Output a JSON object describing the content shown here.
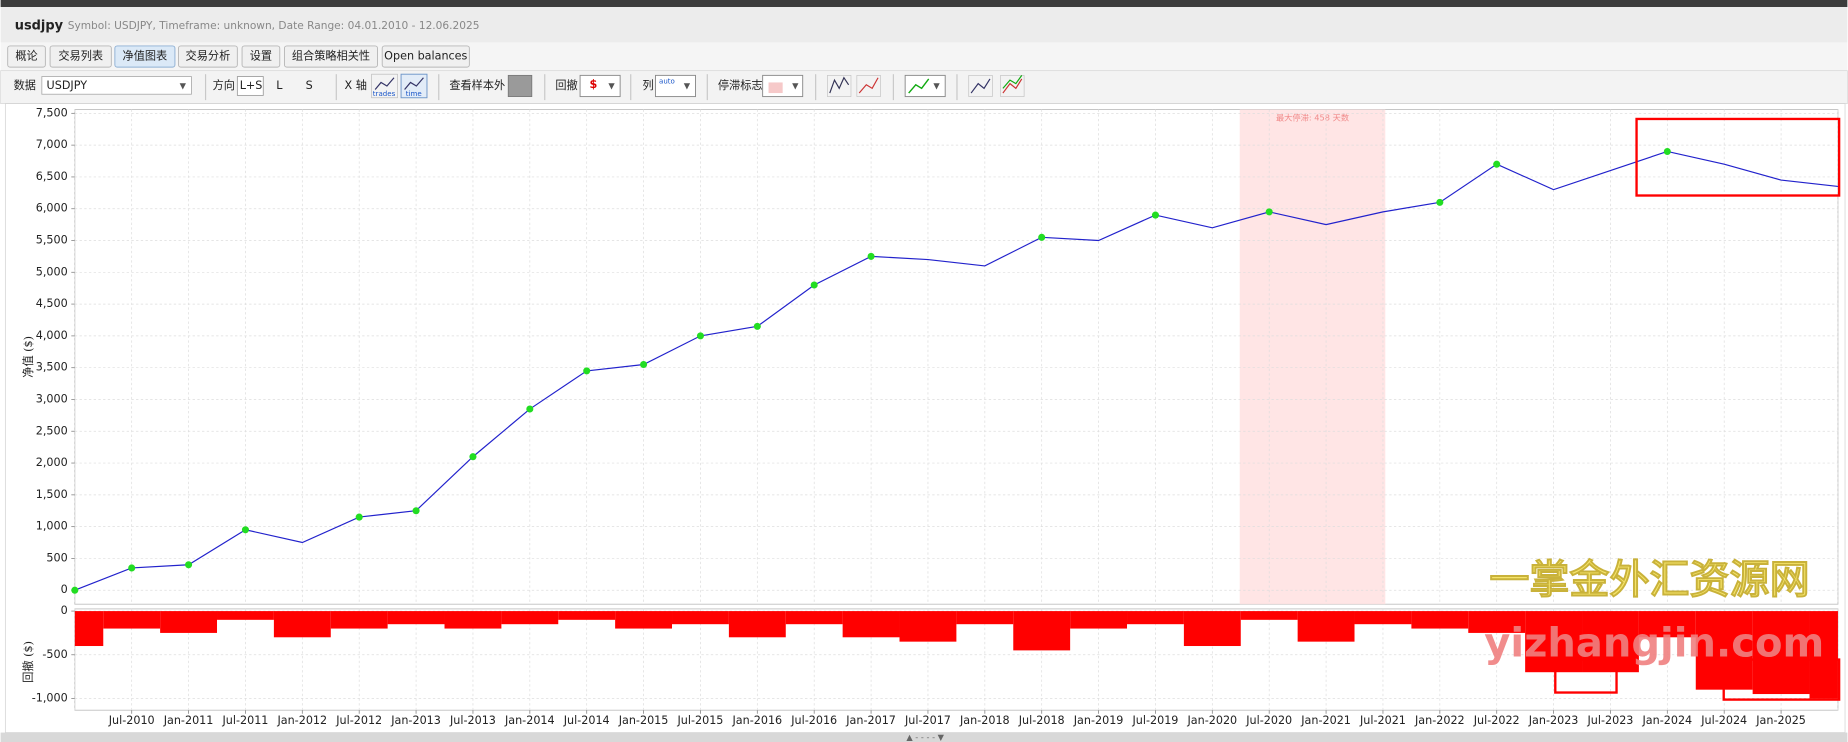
{
  "header": {
    "title": "usdjpy",
    "subtitle": "Symbol: USDJPY, Timeframe: unknown, Date Range: 04.01.2010 - 12.06.2025"
  },
  "tabs": [
    {
      "label": "概论",
      "active": false
    },
    {
      "label": "交易列表",
      "active": false
    },
    {
      "label": "净值图表",
      "active": true
    },
    {
      "label": "交易分析",
      "active": false
    },
    {
      "label": "设置",
      "active": false
    },
    {
      "label": "组合策略相关性",
      "active": false
    },
    {
      "label": "Open balances",
      "active": false
    }
  ],
  "toolbar": {
    "data_label": "数据",
    "symbol": "USDJPY",
    "direction_label": "方向",
    "directions": [
      "L+S",
      "L",
      "S"
    ],
    "x_axis_label": "X 轴",
    "x_axis_options": [
      "trades",
      "time"
    ],
    "out_of_sample_label": "查看样本外",
    "drawdown_label": "回撤",
    "columns_label": "列",
    "columns_option": "auto",
    "stagnation_label": "停滞标志"
  },
  "chart_data": [
    {
      "type": "line",
      "y_label": "净值 ($)",
      "annotation": "最大停滞: 458 天数",
      "color": "#2222cc",
      "new_high_color": "#22dd22",
      "values": [
        0,
        350,
        400,
        950,
        750,
        1150,
        1250,
        2100,
        2850,
        3450,
        3550,
        4000,
        4150,
        4800,
        5250,
        5200,
        5100,
        5550,
        5500,
        5900,
        5700,
        5950,
        5750,
        5950,
        6100,
        6700,
        6300,
        6600,
        6900,
        6700,
        6450,
        6350
      ],
      "ylim": [
        -220,
        7560
      ],
      "yticks": [
        {
          "value": 7500,
          "label": "7,500"
        },
        {
          "value": 7000,
          "label": "7,000"
        },
        {
          "value": 6500,
          "label": "6,500"
        },
        {
          "value": 6000,
          "label": "6,000"
        },
        {
          "value": 5500,
          "label": "5,500"
        },
        {
          "value": 5000,
          "label": "5,000"
        },
        {
          "value": 4500,
          "label": "4,500"
        },
        {
          "value": 4000,
          "label": "4,000"
        },
        {
          "value": 3500,
          "label": "3,500"
        },
        {
          "value": 3000,
          "label": "3,000"
        },
        {
          "value": 2500,
          "label": "2,500"
        },
        {
          "value": 2000,
          "label": "2,000"
        },
        {
          "value": 1500,
          "label": "1,500"
        },
        {
          "value": 1000,
          "label": "1,000"
        },
        500,
        0
      ],
      "grid": true
    },
    {
      "type": "bar",
      "y_label": "回撤 ($)",
      "color": "#ff0000",
      "categories": [
        null,
        "Jul-2010",
        "Jan-2011",
        "Jul-2011",
        "Jan-2012",
        "Jul-2012",
        "Jan-2013",
        "Jul-2013",
        "Jan-2014",
        "Jul-2014",
        "Jan-2015",
        "Jul-2015",
        "Jan-2016",
        "Jul-2016",
        "Jan-2017",
        "Jul-2017",
        "Jan-2018",
        "Jul-2018",
        "Jan-2019",
        "Jul-2019",
        "Jan-2020",
        "Jul-2020",
        "Jan-2021",
        "Jul-2021",
        "Jan-2022",
        "Jul-2022",
        "Jan-2023",
        "Jul-2023",
        "Jan-2024",
        "Jul-2024",
        "Jan-2025",
        null
      ],
      "values": [
        -400,
        -200,
        -250,
        -100,
        -300,
        -200,
        -150,
        -200,
        -150,
        -100,
        -200,
        -150,
        -300,
        -150,
        -300,
        -350,
        -150,
        -450,
        -200,
        -150,
        -400,
        -100,
        -350,
        -150,
        -200,
        -250,
        -700,
        -700,
        -300,
        -900,
        -950,
        -1000
      ],
      "ylim": [
        -1135,
        25
      ],
      "yticks": [
        0,
        -500,
        {
          "value": -1000,
          "label": "-1,000"
        }
      ],
      "grid": true
    }
  ],
  "watermark": {
    "name": "一掌金外汇资源网",
    "url": "yizhangjin.com"
  }
}
